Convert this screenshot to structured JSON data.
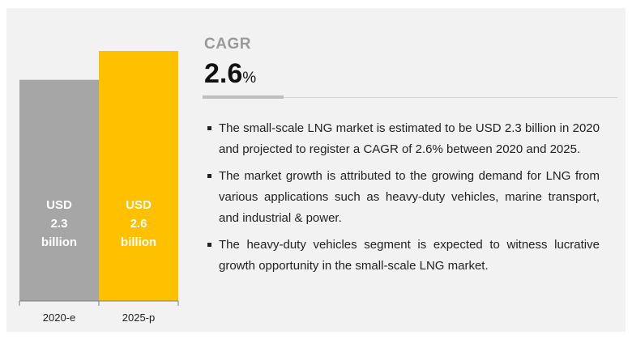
{
  "chart_data": {
    "type": "bar",
    "categories": [
      "2020-e",
      "2025-p"
    ],
    "values": [
      2.3,
      2.6
    ],
    "value_labels": [
      [
        "USD",
        "2.3",
        "billion"
      ],
      [
        "USD",
        "2.6",
        "billion"
      ]
    ],
    "colors": [
      "#a6a6a6",
      "#ffc000"
    ],
    "ylim": [
      0,
      2.6
    ],
    "grid": false,
    "legend": "none"
  },
  "cagr": {
    "label": "CAGR",
    "value": "2.6",
    "unit": "%"
  },
  "bullets": [
    "The small-scale LNG market is estimated to be USD 2.3 billion in 2020 and projected to register a CAGR of 2.6% between 2020 and 2025.",
    "The market growth is attributed to the growing demand for LNG from various applications such as heavy-duty vehicles, marine transport, and industrial & power.",
    "The heavy-duty vehicles segment is expected to witness lucrative growth opportunity in the small-scale LNG market."
  ]
}
